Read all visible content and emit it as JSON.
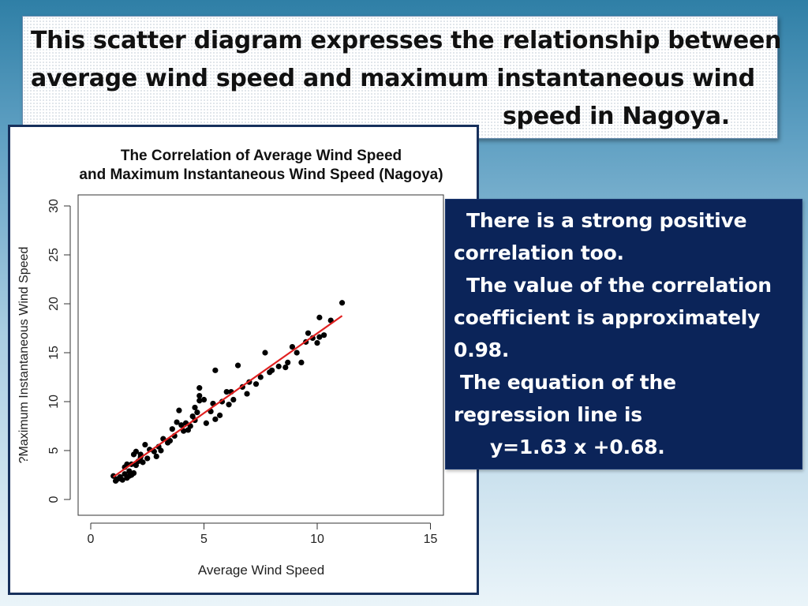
{
  "slide_title": {
    "line1": "This scatter diagram expresses the relationship between",
    "line2": "average wind speed and maximum instantaneous wind",
    "line3": "speed in Nagoya."
  },
  "info": {
    "line1": "There is a strong positive",
    "line2": "correlation too.",
    "line3": "The value of the correlation",
    "line4": "coefficient is approximately",
    "line5": "0.98.",
    "line6": "The equation of the",
    "line7": "regression line is",
    "line8": "y=1.63 x +0.68."
  },
  "chart_data": {
    "type": "scatter",
    "title": [
      "The Correlation of Average Wind Speed",
      "and Maximum Instantaneous Wind Speed (Nagoya)"
    ],
    "xlabel": "Average Wind Speed",
    "ylabel": "?Maximum Instantaneous Wind Speed",
    "xlim": [
      0,
      15
    ],
    "ylim": [
      0,
      30
    ],
    "xticks": [
      "0",
      "5",
      "10",
      "15"
    ],
    "yticks": [
      "0",
      "5",
      "10",
      "15",
      "20",
      "25",
      "30"
    ],
    "grid": false,
    "point_color": "#000000",
    "line_color": "#e02020",
    "regression": {
      "slope": 1.63,
      "intercept": 0.68,
      "x_range": [
        1.0,
        11.1
      ]
    },
    "points": [
      [
        1.0,
        2.4
      ],
      [
        1.1,
        1.9
      ],
      [
        1.2,
        2.1
      ],
      [
        1.3,
        2.3
      ],
      [
        1.4,
        2.0
      ],
      [
        1.5,
        2.6
      ],
      [
        1.5,
        3.3
      ],
      [
        1.6,
        2.2
      ],
      [
        1.6,
        3.6
      ],
      [
        1.7,
        2.4
      ],
      [
        1.7,
        2.9
      ],
      [
        1.8,
        2.5
      ],
      [
        1.8,
        3.6
      ],
      [
        1.9,
        2.7
      ],
      [
        1.9,
        4.6
      ],
      [
        2.0,
        4.9
      ],
      [
        2.0,
        3.5
      ],
      [
        2.1,
        3.9
      ],
      [
        2.2,
        4.3
      ],
      [
        2.2,
        4.6
      ],
      [
        2.3,
        3.8
      ],
      [
        2.4,
        5.6
      ],
      [
        2.5,
        4.2
      ],
      [
        2.6,
        5.1
      ],
      [
        2.8,
        4.9
      ],
      [
        2.9,
        4.4
      ],
      [
        3.0,
        5.4
      ],
      [
        3.1,
        5.0
      ],
      [
        3.2,
        6.2
      ],
      [
        3.4,
        5.8
      ],
      [
        3.5,
        6.0
      ],
      [
        3.6,
        7.2
      ],
      [
        3.7,
        6.5
      ],
      [
        3.8,
        7.9
      ],
      [
        3.9,
        9.1
      ],
      [
        4.0,
        7.6
      ],
      [
        4.1,
        7.0
      ],
      [
        4.2,
        7.8
      ],
      [
        4.3,
        7.1
      ],
      [
        4.4,
        7.5
      ],
      [
        4.5,
        8.5
      ],
      [
        4.6,
        8.1
      ],
      [
        4.6,
        9.4
      ],
      [
        4.7,
        8.9
      ],
      [
        4.8,
        10.1
      ],
      [
        4.8,
        10.6
      ],
      [
        4.8,
        11.4
      ],
      [
        5.0,
        10.2
      ],
      [
        5.1,
        7.8
      ],
      [
        5.3,
        9.0
      ],
      [
        5.4,
        9.8
      ],
      [
        5.5,
        13.2
      ],
      [
        5.5,
        8.2
      ],
      [
        5.7,
        8.6
      ],
      [
        5.8,
        10.0
      ],
      [
        6.0,
        11.0
      ],
      [
        6.1,
        9.7
      ],
      [
        6.2,
        11.0
      ],
      [
        6.3,
        10.2
      ],
      [
        6.5,
        13.7
      ],
      [
        6.7,
        11.5
      ],
      [
        6.9,
        10.8
      ],
      [
        7.0,
        12.0
      ],
      [
        7.3,
        11.8
      ],
      [
        7.5,
        12.5
      ],
      [
        7.7,
        15.0
      ],
      [
        7.9,
        13.0
      ],
      [
        8.0,
        13.2
      ],
      [
        8.3,
        13.6
      ],
      [
        8.6,
        13.5
      ],
      [
        8.7,
        14.0
      ],
      [
        8.9,
        15.6
      ],
      [
        9.1,
        15.0
      ],
      [
        9.3,
        14.0
      ],
      [
        9.5,
        16.1
      ],
      [
        9.6,
        17.0
      ],
      [
        9.8,
        16.5
      ],
      [
        10.0,
        16.0
      ],
      [
        10.1,
        16.6
      ],
      [
        10.1,
        18.6
      ],
      [
        10.3,
        16.8
      ],
      [
        10.6,
        18.3
      ],
      [
        11.1,
        20.1
      ]
    ]
  }
}
